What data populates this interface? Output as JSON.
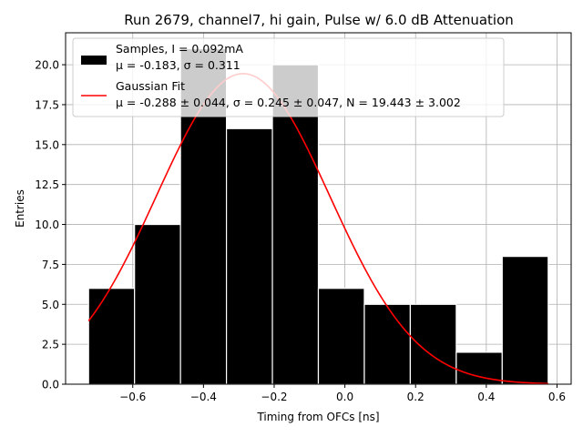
{
  "chart_data": {
    "type": "bar",
    "title": "Run 2679, channel7, hi gain, Pulse w/ 6.0 dB Attenuation",
    "xlabel": "Timing from OFCs [ns]",
    "ylabel": "Entries",
    "xlim": [
      -0.79,
      0.64
    ],
    "ylim": [
      0,
      22
    ],
    "grid": true,
    "xticks": [
      -0.6,
      -0.4,
      -0.2,
      0.0,
      0.2,
      0.4,
      0.6
    ],
    "xtick_labels": [
      "−0.6",
      "−0.4",
      "−0.2",
      "0.0",
      "0.2",
      "0.4",
      "0.6"
    ],
    "yticks": [
      0,
      2.5,
      5,
      7.5,
      10,
      12.5,
      15,
      17.5,
      20
    ],
    "ytick_labels": [
      "0.0",
      "2.5",
      "5.0",
      "7.5",
      "10.0",
      "12.5",
      "15.0",
      "17.5",
      "20.0"
    ],
    "histogram": {
      "name": "Samples",
      "color": "#000000",
      "bins": [
        {
          "x0": -0.725,
          "x1": -0.595,
          "count": 6
        },
        {
          "x0": -0.595,
          "x1": -0.465,
          "count": 10
        },
        {
          "x0": -0.465,
          "x1": -0.335,
          "count": 21
        },
        {
          "x0": -0.335,
          "x1": -0.205,
          "count": 16
        },
        {
          "x0": -0.205,
          "x1": -0.075,
          "count": 20
        },
        {
          "x0": -0.075,
          "x1": 0.055,
          "count": 6
        },
        {
          "x0": 0.055,
          "x1": 0.185,
          "count": 5
        },
        {
          "x0": 0.185,
          "x1": 0.315,
          "count": 5
        },
        {
          "x0": 0.315,
          "x1": 0.445,
          "count": 2
        },
        {
          "x0": 0.445,
          "x1": 0.575,
          "count": 8
        }
      ]
    },
    "fit": {
      "name": "Gaussian Fit",
      "color": "#ff0000",
      "mu": -0.288,
      "sigma": 0.245,
      "N": 19.443,
      "x_range": [
        -0.725,
        0.575
      ]
    },
    "legend": {
      "location": "upper-left",
      "entries": [
        {
          "line1": "Samples, I = 0.092mA",
          "line2": "μ = -0.183, σ = 0.311",
          "kind": "patch",
          "color": "#000000"
        },
        {
          "line1": "Gaussian Fit",
          "line2": "μ = -0.288 ± 0.044, σ = 0.245 ± 0.047, N = 19.443 ± 3.002",
          "kind": "line",
          "color": "#ff0000"
        }
      ]
    }
  }
}
